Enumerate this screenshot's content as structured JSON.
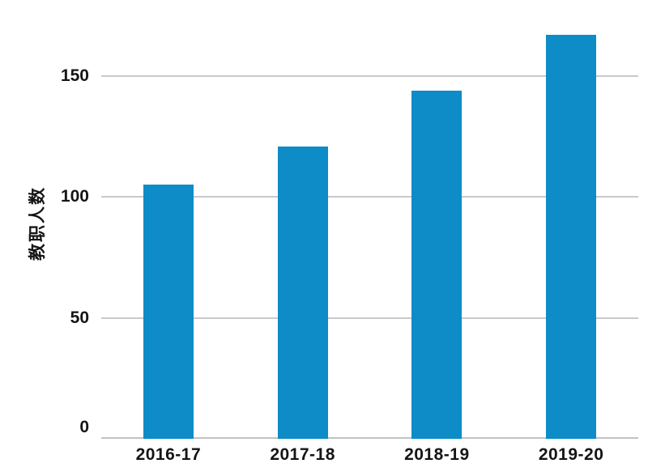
{
  "chart_data": {
    "type": "bar",
    "title": "",
    "xlabel": "",
    "ylabel": "教职人数",
    "categories": [
      "2016-17",
      "2017-18",
      "2018-19",
      "2019-20"
    ],
    "values": [
      105,
      121,
      144,
      167
    ],
    "yticks": [
      0,
      50,
      100,
      150
    ],
    "ylim": [
      0,
      181.5
    ],
    "grid": true,
    "legend": false,
    "colors": {
      "bar": "#0d8cc7",
      "gridline": "#c9c9c9",
      "axis_line": "#c2c2c2",
      "text": "#151515",
      "background": "#ffffff"
    }
  }
}
